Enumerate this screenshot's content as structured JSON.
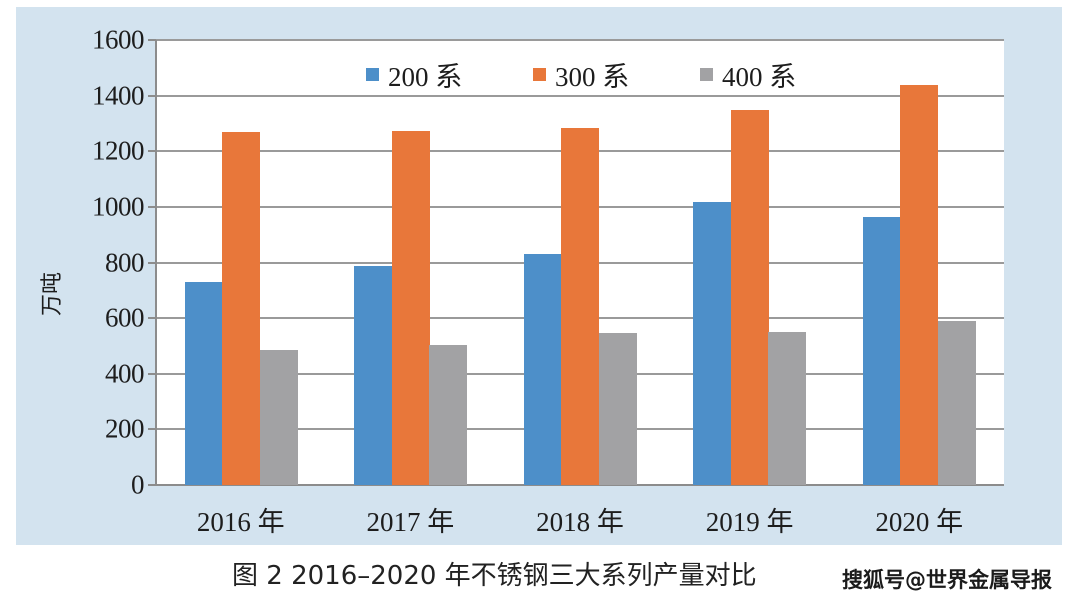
{
  "chart_data": {
    "type": "bar",
    "title": "图 2 2016–2020 年不锈钢三大系列产量对比",
    "xlabel": "",
    "ylabel": "万吨",
    "ylim": [
      0,
      1600
    ],
    "yticks": [
      0,
      200,
      400,
      600,
      800,
      1000,
      1200,
      1400,
      1600
    ],
    "grid": true,
    "legend_position": "top-inside",
    "categories": [
      "2016 年",
      "2017 年",
      "2018 年",
      "2019 年",
      "2020 年"
    ],
    "series": [
      {
        "name": "200 系",
        "color": "#4d8fc9",
        "values": [
          730,
          787,
          831,
          1018,
          964
        ]
      },
      {
        "name": "300 系",
        "color": "#e8773a",
        "values": [
          1269,
          1273,
          1284,
          1348,
          1438
        ]
      },
      {
        "name": "400 系",
        "color": "#a2a2a4",
        "values": [
          485,
          503,
          546,
          550,
          590
        ]
      }
    ]
  },
  "caption": "图 2  2016–2020 年不锈钢三大系列产量对比",
  "watermark": "搜狐号@世界金属导报",
  "colors": {
    "panel_bg": "#d3e3ef",
    "plot_bg": "#ffffff",
    "grid": "#9a9a9a"
  }
}
